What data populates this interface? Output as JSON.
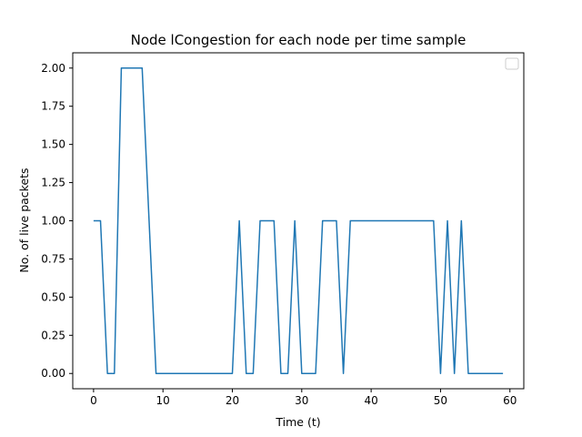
{
  "chart_data": {
    "type": "line",
    "title": "Node lCongestion for each node per time sample",
    "xlabel": "Time (t)",
    "ylabel": "No. of live packets",
    "xlim": [
      -3,
      62
    ],
    "ylim": [
      -0.1,
      2.1
    ],
    "xticks": [
      0,
      10,
      20,
      30,
      40,
      50,
      60
    ],
    "yticks": [
      0.0,
      0.25,
      0.5,
      0.75,
      1.0,
      1.25,
      1.5,
      1.75,
      2.0
    ],
    "ytick_labels": [
      "0.00",
      "0.25",
      "0.50",
      "0.75",
      "1.00",
      "1.25",
      "1.50",
      "1.75",
      "2.00"
    ],
    "legend": "top-right",
    "grid": false,
    "series": [
      {
        "color": "#1f77b4",
        "x": [
          0,
          1,
          2,
          3,
          4,
          5,
          6,
          7,
          8,
          9,
          10,
          11,
          12,
          13,
          14,
          15,
          16,
          17,
          18,
          19,
          20,
          21,
          22,
          23,
          24,
          25,
          26,
          27,
          28,
          29,
          30,
          31,
          32,
          33,
          34,
          35,
          36,
          37,
          38,
          39,
          40,
          41,
          42,
          43,
          44,
          45,
          46,
          47,
          48,
          49,
          50,
          51,
          52,
          53,
          54,
          55,
          56,
          57,
          58,
          59
        ],
        "y": [
          1,
          1,
          0,
          0,
          2,
          2,
          2,
          2,
          1,
          0,
          0,
          0,
          0,
          0,
          0,
          0,
          0,
          0,
          0,
          0,
          0,
          1,
          0,
          0,
          1,
          1,
          1,
          0,
          0,
          1,
          0,
          0,
          0,
          1,
          1,
          1,
          0,
          1,
          1,
          1,
          1,
          1,
          1,
          1,
          1,
          1,
          1,
          1,
          1,
          1,
          0,
          1,
          0,
          1,
          0,
          0,
          0,
          0,
          0,
          0
        ]
      }
    ]
  }
}
